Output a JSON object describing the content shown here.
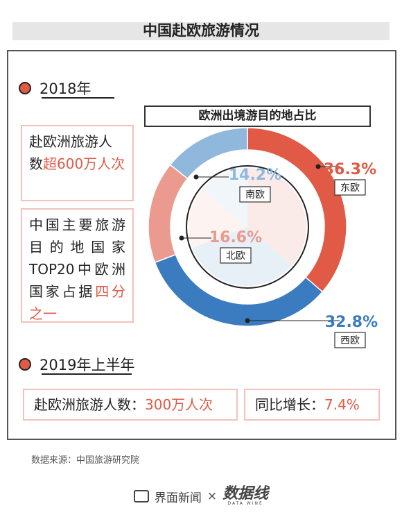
{
  "title": "中国赴欧旅游情况",
  "section1": {
    "heading": "2018年",
    "box1": {
      "text": "赴欧洲旅游人数",
      "highlight": "超600万人次"
    },
    "box2": {
      "text": "中国主要旅游目的地国家TOP20中欧洲国家占据",
      "highlight": "四分之一"
    }
  },
  "chart_data": {
    "type": "pie",
    "title": "欧洲出境游目的地占比",
    "categories": [
      "东欧",
      "西欧",
      "北欧",
      "南欧"
    ],
    "values": [
      36.3,
      32.8,
      16.6,
      14.2
    ],
    "value_labels": [
      "36.3%",
      "32.8%",
      "16.6%",
      "14.2%"
    ],
    "colors": [
      "#e05a45",
      "#3a7cbf",
      "#eb9a8f",
      "#8fb8dc"
    ]
  },
  "section2": {
    "heading": "2019年上半年",
    "box1": {
      "text": "赴欧洲旅游人数：",
      "highlight": "300万人次"
    },
    "box2": {
      "text": "同比增长：",
      "highlight": "7.4%"
    }
  },
  "source": "数据来源：中国旅游研究院",
  "footer": {
    "brand": "界面新闻",
    "separator": "×",
    "partner": "数据线",
    "partner_sub": "DATA WINE"
  }
}
